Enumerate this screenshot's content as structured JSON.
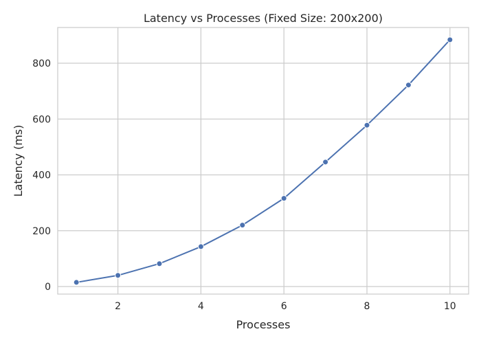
{
  "chart_data": {
    "type": "line",
    "title": "Latency vs Processes (Fixed Size: 200x200)",
    "xlabel": "Processes",
    "ylabel": "Latency (ms)",
    "xlim": [
      0.55,
      10.45
    ],
    "ylim": [
      -27,
      928
    ],
    "xticks": [
      2,
      4,
      6,
      8,
      10
    ],
    "yticks": [
      0,
      200,
      400,
      600,
      800
    ],
    "grid": true,
    "series": [
      {
        "color": "#4c72b0",
        "marker": "circle",
        "x": [
          1,
          2,
          3,
          4,
          5,
          6,
          7,
          8,
          9,
          10
        ],
        "y": [
          15,
          40,
          82,
          143,
          220,
          316,
          446,
          578,
          722,
          884
        ]
      }
    ]
  }
}
